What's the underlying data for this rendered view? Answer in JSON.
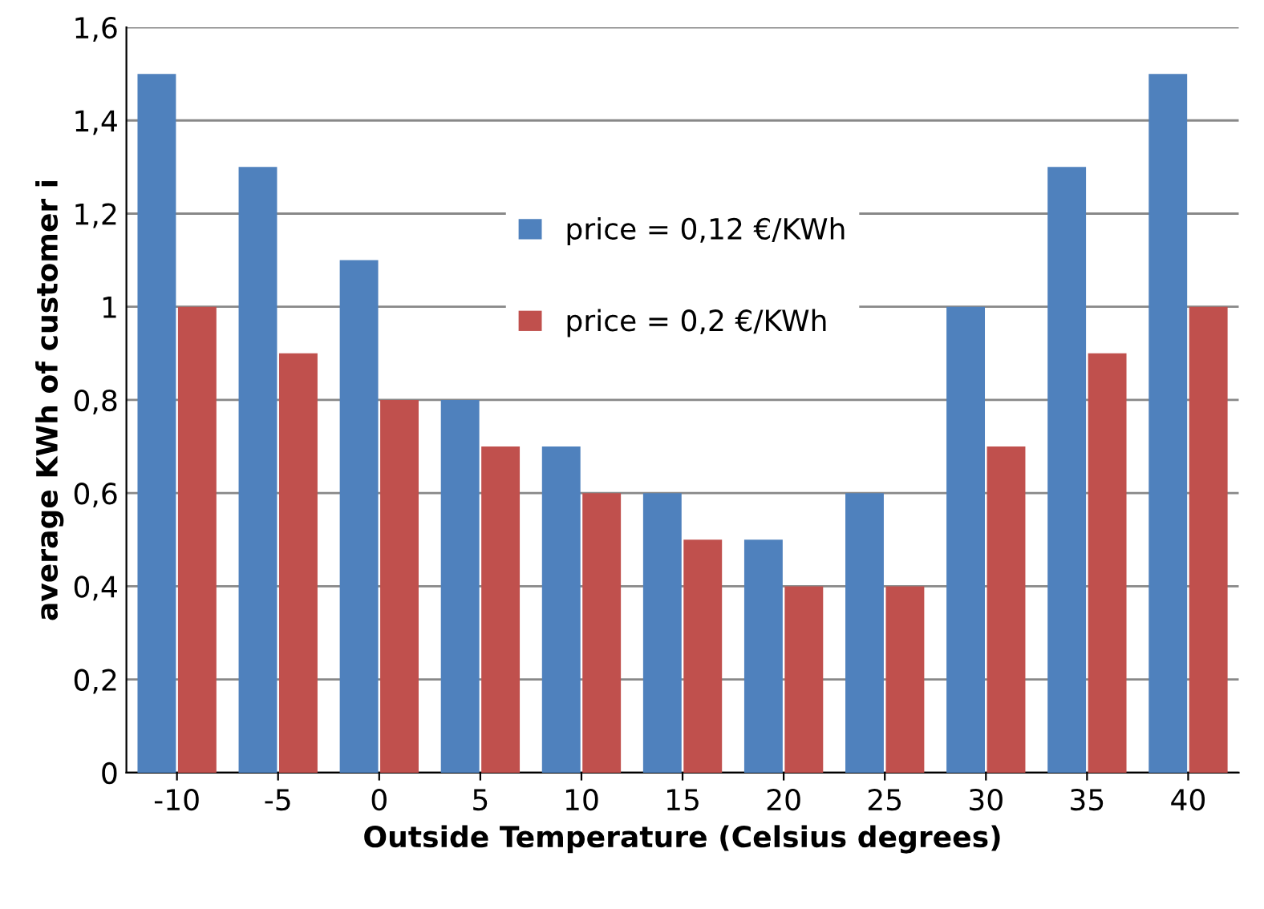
{
  "chart_data": {
    "type": "bar",
    "xlabel": "Outside Temperature (Celsius degrees)",
    "ylabel": "average KWh of customer i",
    "categories": [
      "-10",
      "-5",
      "0",
      "5",
      "10",
      "15",
      "20",
      "25",
      "30",
      "35",
      "40"
    ],
    "series": [
      {
        "name": "price = 0,12 €/KWh",
        "color": "#4f81bd",
        "values": [
          1.5,
          1.3,
          1.1,
          0.8,
          0.7,
          0.6,
          0.5,
          0.6,
          1.0,
          1.3,
          1.5
        ]
      },
      {
        "name": "price = 0,2 €/KWh",
        "color": "#c0504d",
        "values": [
          1.0,
          0.9,
          0.8,
          0.7,
          0.6,
          0.5,
          0.4,
          0.4,
          0.7,
          0.9,
          1.0
        ]
      }
    ],
    "ylim": [
      0,
      1.6
    ],
    "yticks": [
      0,
      {
        "value": 0.2,
        "label": "0,2"
      },
      {
        "value": 0.4,
        "label": "0,4"
      },
      {
        "value": 0.6,
        "label": "0,6"
      },
      {
        "value": 0.8,
        "label": "0,8"
      },
      1,
      {
        "value": 1.2,
        "label": "1,2"
      },
      {
        "value": 1.4,
        "label": "1,4"
      },
      {
        "value": 1.6,
        "label": "1,6"
      }
    ],
    "grid": "y",
    "legend": "top"
  }
}
